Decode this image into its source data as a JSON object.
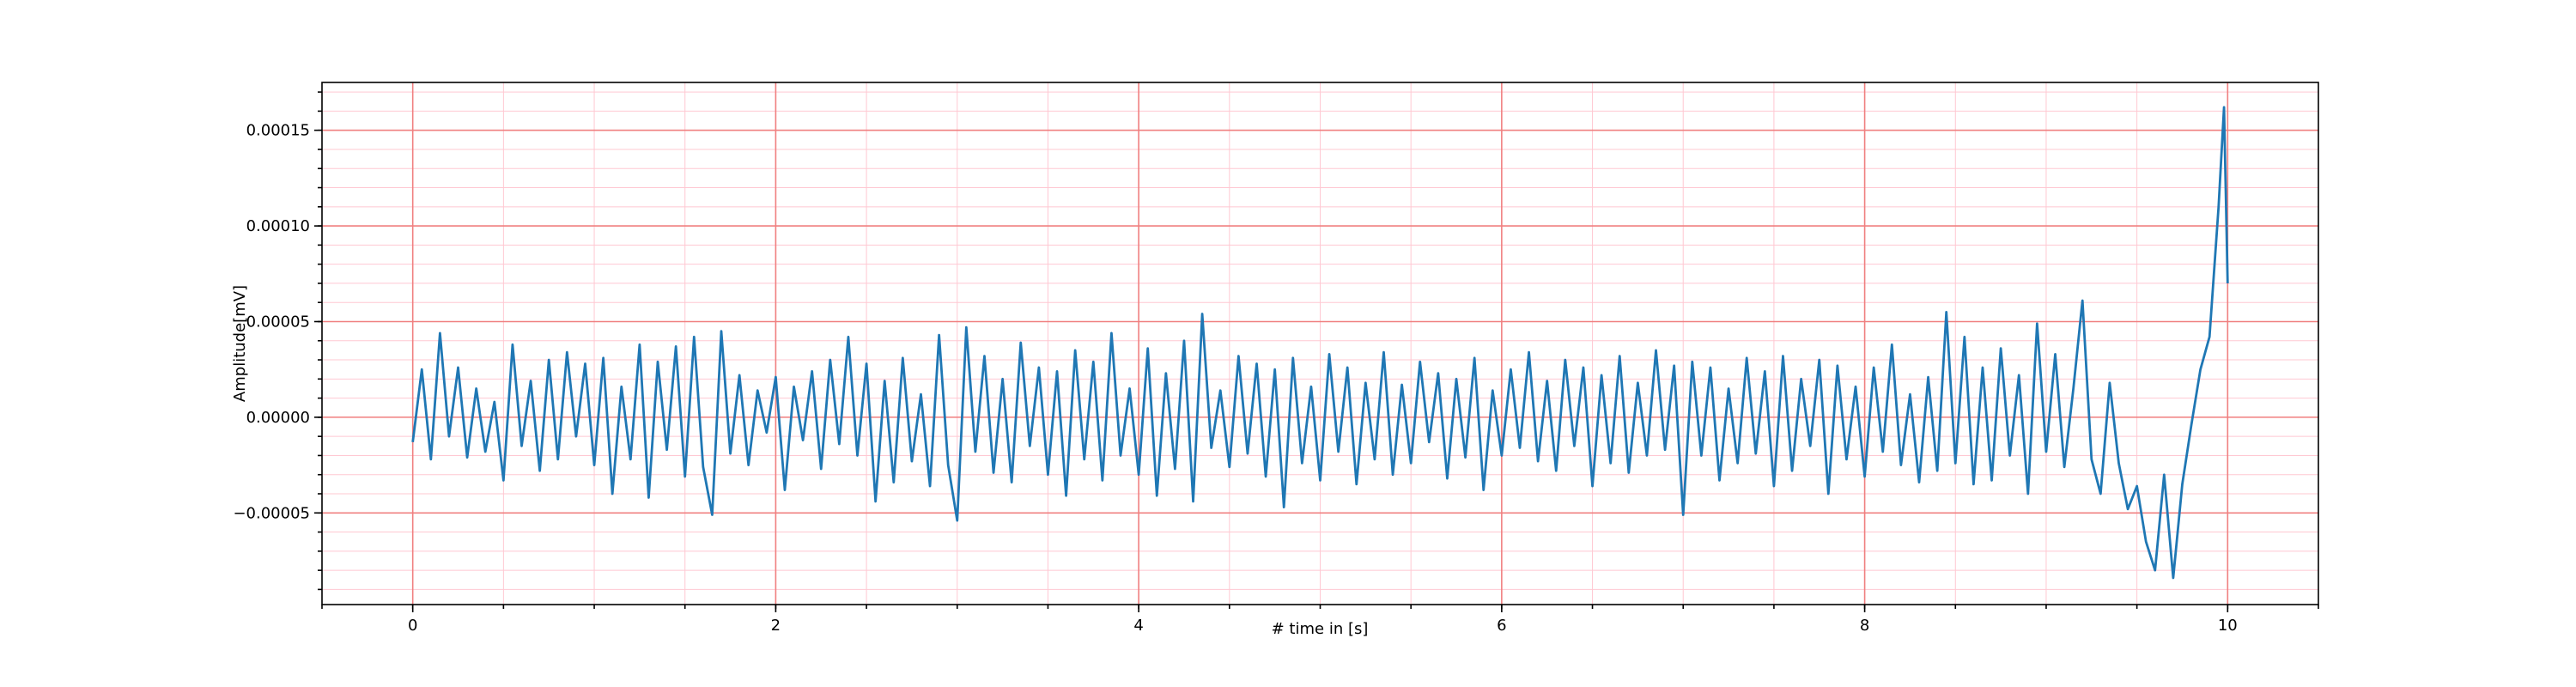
{
  "chart_data": {
    "type": "line",
    "xlabel": "# time in [s]",
    "ylabel": "Amplitude[mV]",
    "color": "#1f77b4",
    "grid": true,
    "minor_grid": true,
    "xlim": [
      -0.5,
      10.5
    ],
    "xticks": [
      0,
      2,
      4,
      6,
      8,
      10
    ],
    "ylim": [
      -9.79e-05,
      0.000175
    ],
    "yticks": [
      {
        "value": -5e-05,
        "label": "−0.00005"
      },
      {
        "value": 0,
        "label": "0.00000"
      },
      {
        "value": 5e-05,
        "label": "0.00005"
      },
      {
        "value": 0.0001,
        "label": "0.00010"
      },
      {
        "value": 0.00015,
        "label": "0.00015"
      }
    ],
    "x": [
      0,
      0.05,
      0.1,
      0.15,
      0.2,
      0.25,
      0.3,
      0.35,
      0.4,
      0.45,
      0.5,
      0.55,
      0.6,
      0.65,
      0.7,
      0.75,
      0.8,
      0.85,
      0.9,
      0.95,
      1,
      1.05,
      1.1,
      1.15,
      1.2,
      1.25,
      1.3,
      1.35,
      1.4,
      1.45,
      1.5,
      1.55,
      1.6,
      1.65,
      1.7,
      1.75,
      1.8,
      1.85,
      1.9,
      1.95,
      2,
      2.05,
      2.1,
      2.15,
      2.2,
      2.25,
      2.3,
      2.35,
      2.4,
      2.45,
      2.5,
      2.55,
      2.6,
      2.65,
      2.7,
      2.75,
      2.8,
      2.85,
      2.9,
      2.95,
      3,
      3.05,
      3.1,
      3.15,
      3.2,
      3.25,
      3.3,
      3.35,
      3.4,
      3.45,
      3.5,
      3.55,
      3.6,
      3.65,
      3.7,
      3.75,
      3.8,
      3.85,
      3.9,
      3.95,
      4,
      4.05,
      4.1,
      4.15,
      4.2,
      4.25,
      4.3,
      4.35,
      4.4,
      4.45,
      4.5,
      4.55,
      4.6,
      4.65,
      4.7,
      4.75,
      4.8,
      4.85,
      4.9,
      4.95,
      5,
      5.05,
      5.1,
      5.15,
      5.2,
      5.25,
      5.3,
      5.35,
      5.4,
      5.45,
      5.5,
      5.55,
      5.6,
      5.65,
      5.7,
      5.75,
      5.8,
      5.85,
      5.9,
      5.95,
      6,
      6.05,
      6.1,
      6.15,
      6.2,
      6.25,
      6.3,
      6.35,
      6.4,
      6.45,
      6.5,
      6.55,
      6.6,
      6.65,
      6.7,
      6.75,
      6.8,
      6.85,
      6.9,
      6.95,
      7,
      7.05,
      7.1,
      7.15,
      7.2,
      7.25,
      7.3,
      7.35,
      7.4,
      7.45,
      7.5,
      7.55,
      7.6,
      7.65,
      7.7,
      7.75,
      7.8,
      7.85,
      7.9,
      7.95,
      8,
      8.05,
      8.1,
      8.15,
      8.2,
      8.25,
      8.3,
      8.35,
      8.4,
      8.45,
      8.5,
      8.55,
      8.6,
      8.65,
      8.7,
      8.75,
      8.8,
      8.85,
      8.9,
      8.95,
      9,
      9.05,
      9.1,
      9.15,
      9.2,
      9.25,
      9.3,
      9.35,
      9.4,
      9.45,
      9.5,
      9.55,
      9.6,
      9.65,
      9.7,
      9.75,
      9.8,
      9.85,
      9.9,
      9.95,
      9.98,
      10
    ],
    "values": [
      -1.3e-05,
      2.5e-05,
      -2.2e-05,
      4.4e-05,
      -1e-05,
      2.6e-05,
      -2.1e-05,
      1.5e-05,
      -1.8e-05,
      8e-06,
      -3.3e-05,
      3.8e-05,
      -1.5e-05,
      1.9e-05,
      -2.8e-05,
      3e-05,
      -2.2e-05,
      3.4e-05,
      -1e-05,
      2.8e-05,
      -2.5e-05,
      3.1e-05,
      -4e-05,
      1.6e-05,
      -2.2e-05,
      3.8e-05,
      -4.2e-05,
      2.9e-05,
      -1.7e-05,
      3.7e-05,
      -3.1e-05,
      4.2e-05,
      -2.6e-05,
      -5.1e-05,
      4.5e-05,
      -1.9e-05,
      2.2e-05,
      -2.5e-05,
      1.4e-05,
      -8e-06,
      2.1e-05,
      -3.8e-05,
      1.6e-05,
      -1.2e-05,
      2.4e-05,
      -2.7e-05,
      3e-05,
      -1.4e-05,
      4.2e-05,
      -2e-05,
      2.8e-05,
      -4.4e-05,
      1.9e-05,
      -3.4e-05,
      3.1e-05,
      -2.3e-05,
      1.2e-05,
      -3.6e-05,
      4.3e-05,
      -2.5e-05,
      -5.4e-05,
      4.7e-05,
      -1.8e-05,
      3.2e-05,
      -2.9e-05,
      2e-05,
      -3.4e-05,
      3.9e-05,
      -1.5e-05,
      2.6e-05,
      -3e-05,
      2.4e-05,
      -4.1e-05,
      3.5e-05,
      -2.2e-05,
      2.9e-05,
      -3.3e-05,
      4.4e-05,
      -2e-05,
      1.5e-05,
      -3e-05,
      3.6e-05,
      -4.1e-05,
      2.3e-05,
      -2.7e-05,
      4e-05,
      -4.4e-05,
      5.4e-05,
      -1.6e-05,
      1.4e-05,
      -2.6e-05,
      3.2e-05,
      -1.9e-05,
      2.8e-05,
      -3.1e-05,
      2.5e-05,
      -4.7e-05,
      3.1e-05,
      -2.4e-05,
      1.6e-05,
      -3.3e-05,
      3.3e-05,
      -1.8e-05,
      2.6e-05,
      -3.5e-05,
      1.8e-05,
      -2.2e-05,
      3.4e-05,
      -3e-05,
      1.7e-05,
      -2.4e-05,
      2.9e-05,
      -1.3e-05,
      2.3e-05,
      -3.2e-05,
      2e-05,
      -2.1e-05,
      3.1e-05,
      -3.8e-05,
      1.4e-05,
      -2e-05,
      2.5e-05,
      -1.6e-05,
      3.4e-05,
      -2.3e-05,
      1.9e-05,
      -2.8e-05,
      3e-05,
      -1.5e-05,
      2.6e-05,
      -3.6e-05,
      2.2e-05,
      -2.4e-05,
      3.2e-05,
      -2.9e-05,
      1.8e-05,
      -2e-05,
      3.5e-05,
      -1.7e-05,
      2.7e-05,
      -5.1e-05,
      2.9e-05,
      -2e-05,
      2.6e-05,
      -3.3e-05,
      1.5e-05,
      -2.4e-05,
      3.1e-05,
      -1.9e-05,
      2.4e-05,
      -3.6e-05,
      3.2e-05,
      -2.8e-05,
      2e-05,
      -1.5e-05,
      3e-05,
      -4e-05,
      2.7e-05,
      -2.2e-05,
      1.6e-05,
      -3.1e-05,
      2.6e-05,
      -1.8e-05,
      3.8e-05,
      -2.5e-05,
      1.2e-05,
      -3.4e-05,
      2.1e-05,
      -2.8e-05,
      5.5e-05,
      -2.4e-05,
      4.2e-05,
      -3.5e-05,
      2.6e-05,
      -3.3e-05,
      3.6e-05,
      -2e-05,
      2.2e-05,
      -4e-05,
      4.9e-05,
      -1.8e-05,
      3.3e-05,
      -2.6e-05,
      1.5e-05,
      6.1e-05,
      -2.2e-05,
      -4e-05,
      1.8e-05,
      -2.4e-05,
      -4.8e-05,
      -3.6e-05,
      -6.5e-05,
      -8e-05,
      -3e-05,
      -8.4e-05,
      -3.5e-05,
      -4e-06,
      2.5e-05,
      4.2e-05,
      0.00011,
      0.000162,
      7e-05
    ]
  }
}
